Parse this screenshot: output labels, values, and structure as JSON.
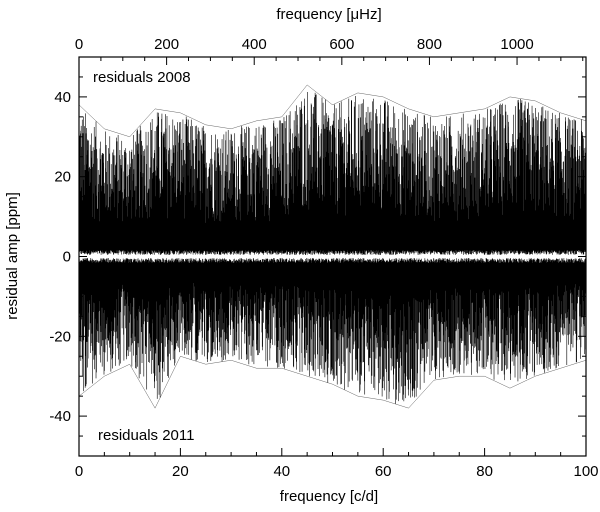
{
  "chart_data": {
    "type": "line",
    "title": "",
    "xlabel": "frequency [c/d]",
    "x2label": "frequency [μHz]",
    "ylabel": "residual amp [ppm]",
    "xlim": [
      0,
      100
    ],
    "x2lim": [
      0,
      1157.4
    ],
    "ylim": [
      -50,
      50
    ],
    "x_ticks": [
      0,
      20,
      40,
      60,
      80,
      100
    ],
    "x2_ticks": [
      0,
      200,
      400,
      600,
      800,
      1000
    ],
    "y_ticks": [
      -40,
      -20,
      0,
      20,
      40
    ],
    "grid": false,
    "annotations": [
      "residuals 2008",
      "residuals 2011"
    ],
    "series": [
      {
        "key": "residuals_2008",
        "direction": "positive",
        "x": [
          0,
          5,
          10,
          15,
          20,
          25,
          30,
          35,
          40,
          45,
          50,
          55,
          60,
          65,
          70,
          75,
          80,
          85,
          90,
          95,
          100
        ],
        "envelope_max": [
          38,
          32,
          30,
          37,
          36,
          33,
          32,
          34,
          35,
          43,
          38,
          41,
          40,
          37,
          35,
          36,
          37,
          40,
          39,
          36,
          34
        ]
      },
      {
        "key": "residuals_2011",
        "direction": "negative",
        "x": [
          0,
          5,
          10,
          15,
          20,
          25,
          30,
          35,
          40,
          45,
          50,
          55,
          60,
          65,
          70,
          75,
          80,
          85,
          90,
          95,
          100
        ],
        "envelope_max": [
          -35,
          -30,
          -27,
          -38,
          -25,
          -27,
          -26,
          -28,
          -28,
          -30,
          -32,
          -35,
          -36,
          -38,
          -31,
          -30,
          -30,
          -33,
          -30,
          -28,
          -26
        ]
      }
    ]
  }
}
